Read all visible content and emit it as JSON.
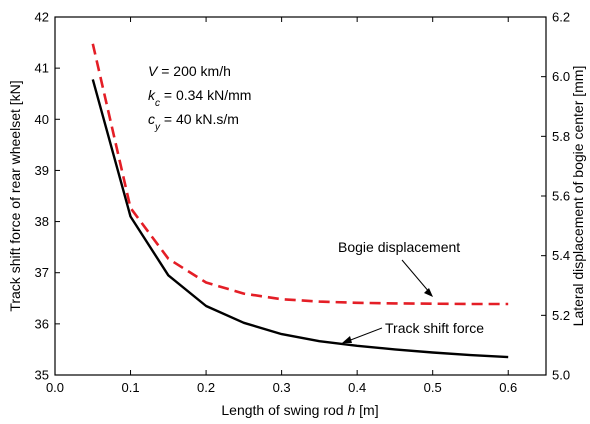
{
  "chart_data": {
    "type": "line",
    "xlabel": {
      "pre": "Length of swing rod ",
      "var": "h",
      "post": " [m]"
    },
    "ylabel_left": "Track shift force of rear wheelset [kN]",
    "ylabel_right": "Lateral displacement of bogie center [mm]",
    "xlim": [
      0.0,
      0.65
    ],
    "ylim_left": [
      35,
      42
    ],
    "ylim_right": [
      5.0,
      6.2
    ],
    "xticks": [
      "0.0",
      "0.1",
      "0.2",
      "0.3",
      "0.4",
      "0.5",
      "0.6"
    ],
    "yticks_left": [
      "35",
      "36",
      "37",
      "38",
      "39",
      "40",
      "41",
      "42"
    ],
    "yticks_right": [
      "5.0",
      "5.2",
      "5.4",
      "5.6",
      "5.8",
      "6.0",
      "6.2"
    ],
    "grid": false,
    "parameters": [
      {
        "var": "V",
        "sub": "",
        "rest": " = 200 km/h"
      },
      {
        "var": "k",
        "sub": "c",
        "rest": " = 0.34 kN/mm"
      },
      {
        "var": "c",
        "sub": "y",
        "rest": " = 40 kN.s/m"
      }
    ],
    "series": [
      {
        "name": "Track shift force",
        "axis": "left",
        "color": "#000000",
        "style": "solid",
        "x": [
          0.05,
          0.1,
          0.15,
          0.2,
          0.25,
          0.3,
          0.35,
          0.4,
          0.45,
          0.5,
          0.55,
          0.6
        ],
        "values": [
          40.78,
          38.1,
          36.95,
          36.35,
          36.02,
          35.8,
          35.66,
          35.57,
          35.5,
          35.44,
          35.39,
          35.35
        ]
      },
      {
        "name": "Bogie displacement",
        "axis": "right",
        "color": "#e41e26",
        "style": "dashed",
        "x": [
          0.05,
          0.1,
          0.15,
          0.2,
          0.25,
          0.3,
          0.35,
          0.4,
          0.45,
          0.5,
          0.55,
          0.6
        ],
        "values": [
          6.11,
          5.56,
          5.39,
          5.31,
          5.273,
          5.254,
          5.246,
          5.242,
          5.24,
          5.239,
          5.238,
          5.238
        ]
      }
    ]
  }
}
